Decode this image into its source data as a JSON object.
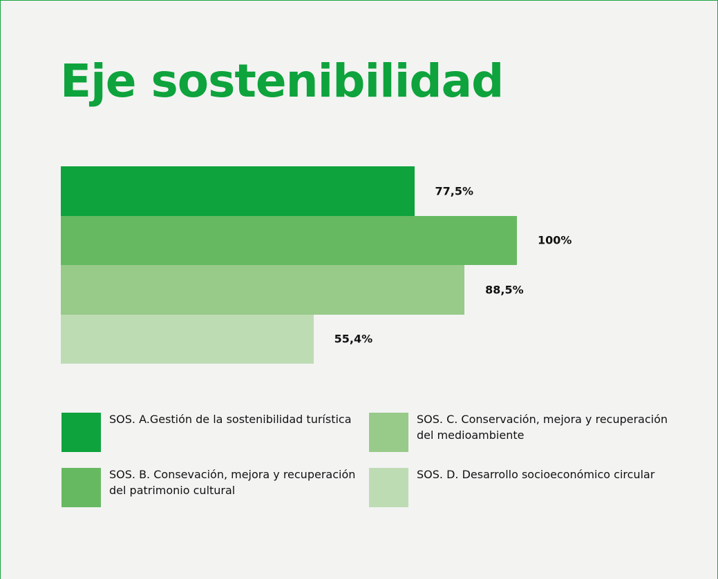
{
  "chart_data": {
    "type": "bar",
    "orientation": "horizontal",
    "title": "Eje sostenibilidad",
    "categories": [
      "SOS. A.Gestión de la sostenibilidad turística",
      "SOS. B. Consevación, mejora y recuperación del patrimonio cultural",
      "SOS. C. Conservación, mejora y recuperación del medioambiente",
      "SOS. D. Desarrollo socioeconómico circular"
    ],
    "values": [
      77.5,
      100,
      88.5,
      55.4
    ],
    "value_labels": [
      "77,5%",
      "100%",
      "88,5%",
      "55,4%"
    ],
    "colors": [
      "#0ea33c",
      "#66b960",
      "#98ca8a",
      "#bedcb4"
    ]
  }
}
